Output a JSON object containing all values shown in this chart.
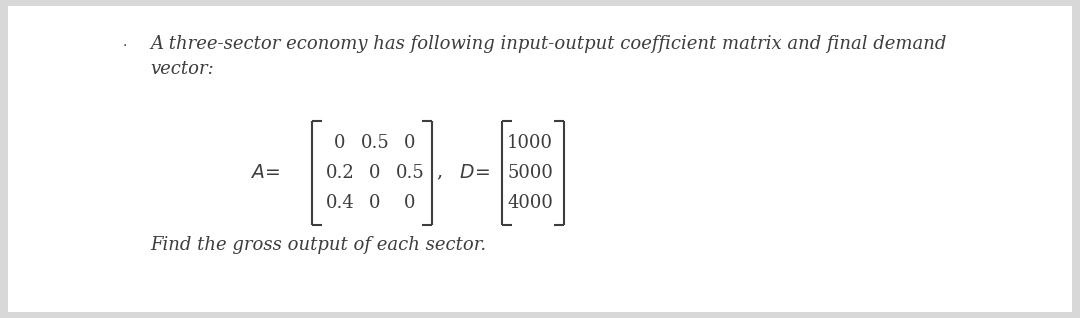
{
  "bg_color": "#d8d8d8",
  "content_bg": "#ffffff",
  "title_line1": "A three-sector economy has following input-output coefficient matrix and final demand",
  "title_line2": "vector:",
  "matrix_A_rows": [
    [
      "0",
      "0.5",
      "0"
    ],
    [
      "0.2",
      "0",
      "0.5"
    ],
    [
      "0.4",
      "0",
      "0"
    ]
  ],
  "vector_D": [
    "1000",
    "5000",
    "4000"
  ],
  "footer": "Find the gross output of each sector.",
  "font_color": "#3d3d3d",
  "font_size": 13.0
}
